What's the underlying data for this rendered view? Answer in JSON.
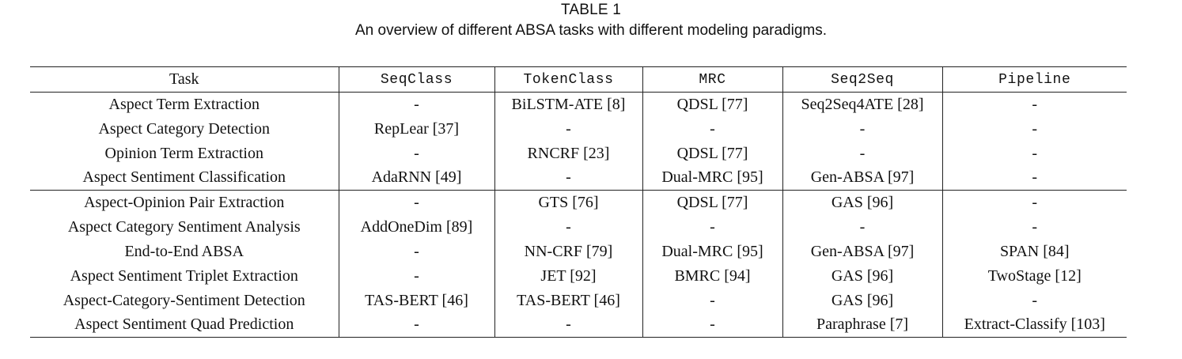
{
  "caption": {
    "label": "TABLE 1",
    "text": "An overview of different ABSA tasks with different modeling paradigms."
  },
  "table": {
    "headers": [
      "Task",
      "SeqClass",
      "TokenClass",
      "MRC",
      "Seq2Seq",
      "Pipeline"
    ],
    "group_a": [
      [
        "Aspect Term Extraction",
        "-",
        "BiLSTM-ATE [8]",
        "QDSL [77]",
        "Seq2Seq4ATE [28]",
        "-"
      ],
      [
        "Aspect Category Detection",
        "RepLear [37]",
        "-",
        "-",
        "-",
        "-"
      ],
      [
        "Opinion Term Extraction",
        "-",
        "RNCRF [23]",
        "QDSL [77]",
        "-",
        "-"
      ],
      [
        "Aspect Sentiment Classification",
        "AdaRNN  [49]",
        "-",
        "Dual-MRC [95]",
        "Gen-ABSA [97]",
        "-"
      ]
    ],
    "group_b": [
      [
        "Aspect-Opinion Pair Extraction",
        "-",
        "GTS [76]",
        "QDSL [77]",
        "GAS [96]",
        "-"
      ],
      [
        "Aspect Category Sentiment Analysis",
        "AddOneDim [89]",
        "-",
        "-",
        "-",
        "-"
      ],
      [
        "End-to-End ABSA",
        "-",
        "NN-CRF [79]",
        "Dual-MRC [95]",
        "Gen-ABSA [97]",
        "SPAN [84]"
      ],
      [
        "Aspect Sentiment Triplet Extraction",
        "-",
        "JET [92]",
        "BMRC [94]",
        "GAS [96]",
        "TwoStage [12]"
      ],
      [
        "Aspect-Category-Sentiment Detection",
        "TAS-BERT [46]",
        "TAS-BERT [46]",
        "-",
        "GAS [96]",
        "-"
      ],
      [
        "Aspect Sentiment Quad Prediction",
        "-",
        "-",
        "-",
        "Paraphrase [7]",
        "Extract-Classify [103]"
      ]
    ]
  }
}
